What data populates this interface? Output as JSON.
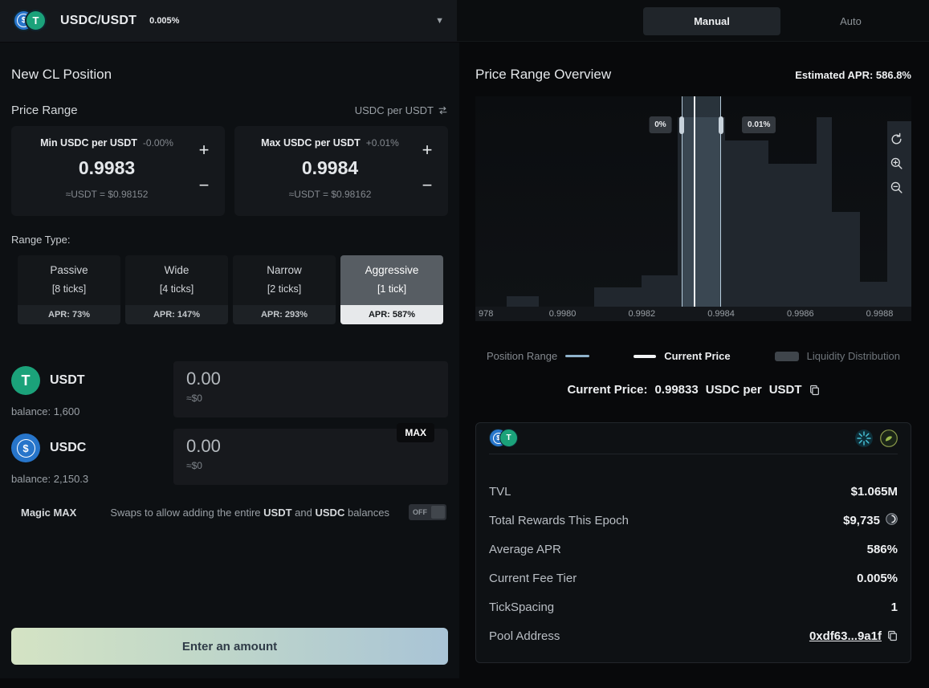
{
  "header": {
    "pair": "USDC/USDT",
    "fee": "0.005%",
    "mode_manual": "Manual",
    "mode_auto": "Auto"
  },
  "left": {
    "title": "New CL Position",
    "price_range_label": "Price Range",
    "denom": "USDC per USDT",
    "min": {
      "label": "Min USDC per USDT",
      "pct": "-0.00%",
      "value": "0.9983",
      "approx": "≈USDT = $0.98152",
      "plus": "+",
      "minus": "−"
    },
    "max": {
      "label": "Max USDC per USDT",
      "pct": "+0.01%",
      "value": "0.9984",
      "approx": "≈USDT = $0.98162",
      "plus": "+",
      "minus": "−"
    },
    "range_type_label": "Range Type:",
    "range_types": [
      {
        "name": "Passive",
        "ticks": "[8 ticks]",
        "apr": "APR: 73%",
        "selected": false
      },
      {
        "name": "Wide",
        "ticks": "[4 ticks]",
        "apr": "APR: 147%",
        "selected": false
      },
      {
        "name": "Narrow",
        "ticks": "[2 ticks]",
        "apr": "APR: 293%",
        "selected": false
      },
      {
        "name": "Aggressive",
        "ticks": "[1 tick]",
        "apr": "APR: 587%",
        "selected": true
      }
    ],
    "tokens": [
      {
        "symbol": "USDT",
        "balance": "balance: 1,600",
        "amount": "0.00",
        "usd": "≈$0"
      },
      {
        "symbol": "USDC",
        "balance": "balance: 2,150.3",
        "amount": "0.00",
        "usd": "≈$0"
      }
    ],
    "max_button": "MAX",
    "magic_max": {
      "label": "Magic MAX",
      "desc_pre": "Swaps to allow adding the entire",
      "token1": "USDT",
      "desc_mid": "and",
      "token2": "USDC",
      "desc_post": "balances",
      "toggle": "OFF"
    },
    "submit": "Enter an amount"
  },
  "right": {
    "title": "Price Range Overview",
    "apr": "Estimated APR: 586.8%",
    "legend": [
      "Position Range",
      "Current Price",
      "Liquidity Distribution"
    ],
    "current_price": {
      "label": "Current Price:",
      "value": "0.99833",
      "denom": "USDC per",
      "token": "USDT"
    },
    "pool": {
      "rows": [
        {
          "label": "TVL",
          "value": "$1.065M"
        },
        {
          "label": "Total Rewards This Epoch",
          "value": "$9,735"
        },
        {
          "label": "Average APR",
          "value": "586%"
        },
        {
          "label": "Current Fee Tier",
          "value": "0.005%"
        },
        {
          "label": "TickSpacing",
          "value": "1"
        },
        {
          "label": "Pool Address",
          "value": "0xdf63...9a1f"
        }
      ]
    }
  },
  "colors": {
    "usdt": "#1ba27a",
    "usdc": "#2775ca",
    "position_range": "#8fb3cc",
    "current_price": "#ffffff",
    "liquidity": "#3f454b",
    "button_gradient": [
      "#d4e3c4",
      "#a9c4d6"
    ]
  },
  "chart_data": {
    "type": "bar",
    "title": "Liquidity distribution vs price (USDC per USDT)",
    "x_domain": [
      0.99778,
      0.99888
    ],
    "x_ticks": [
      {
        "p": 0.9978,
        "label": "978"
      },
      {
        "p": 0.998,
        "label": "0.9980"
      },
      {
        "p": 0.9982,
        "label": "0.9982"
      },
      {
        "p": 0.9984,
        "label": "0.9984"
      },
      {
        "p": 0.9986,
        "label": "0.9986"
      },
      {
        "p": 0.9988,
        "label": "0.9988"
      }
    ],
    "bars": [
      {
        "x": 0.99786,
        "w": 8e-05,
        "h": 0.05
      },
      {
        "x": 0.99808,
        "w": 0.00012,
        "h": 0.09
      },
      {
        "x": 0.9982,
        "w": 9e-05,
        "h": 0.15
      },
      {
        "x": 0.99829,
        "w": 0.00012,
        "h": 0.9
      },
      {
        "x": 0.99841,
        "w": 0.00011,
        "h": 0.79
      },
      {
        "x": 0.99852,
        "w": 0.00012,
        "h": 0.68
      },
      {
        "x": 0.99864,
        "w": 4e-05,
        "h": 0.9
      },
      {
        "x": 0.99868,
        "w": 7e-05,
        "h": 0.45
      },
      {
        "x": 0.99875,
        "w": 7e-05,
        "h": 0.12
      },
      {
        "x": 0.99882,
        "w": 8e-05,
        "h": 0.88
      }
    ],
    "position_range": [
      0.9983,
      0.9984
    ],
    "current_price": 0.99833,
    "range_labels": {
      "left": "0%",
      "right": "0.01%"
    },
    "legend_position": "bottom",
    "grid": false
  }
}
